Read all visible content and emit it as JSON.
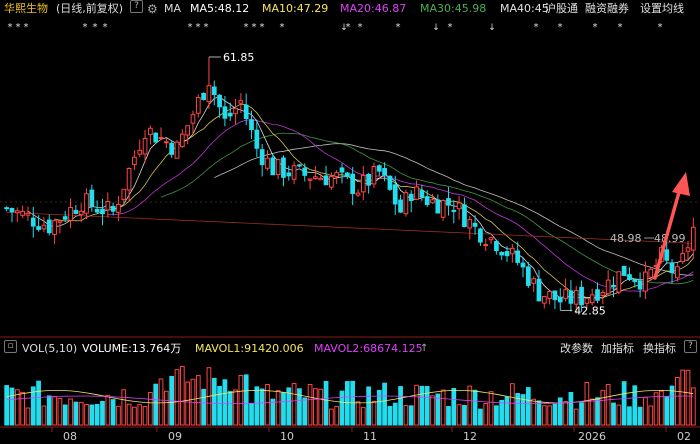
{
  "header": {
    "stock_name": "华熙生物",
    "mode": "(日线,前复权)",
    "help": "?",
    "ma_label": "MA",
    "ma5": "MA5:48.12",
    "ma10": "MA10:47.29",
    "ma20": "MA20:46.87",
    "ma30": "MA30:45.98",
    "ma40": "MA40:45",
    "link_hgt": "沪股通",
    "link_rzrq": "融资融券",
    "link_setma": "设置均线",
    "colors": {
      "ma5": "#ffffff",
      "ma10": "#f5e663",
      "ma20": "#e040fb",
      "ma30": "#4caf50",
      "ma40": "#e0e0e0"
    }
  },
  "volume_header": {
    "label": "VOL(5,10)",
    "volume": "VOLUME:13.764万",
    "mavol1": "MAVOL1:91420.006",
    "mavol2": "MAVOL2:68674.125",
    "btn_params": "改参数",
    "btn_add": "加指标",
    "btn_switch": "换指标",
    "help": "?"
  },
  "annotations": {
    "high_label": "61.85",
    "low_label": "42.85",
    "price_tag_left": "48.98",
    "price_tag_right": "48.99",
    "event_marks": "*",
    "event_down": "↓"
  },
  "chart_data": {
    "type": "candlestick",
    "x_axis_labels": [
      "08",
      "09",
      "10",
      "11",
      "12",
      "2026",
      "02"
    ],
    "price_high": 61.85,
    "price_low": 42.85,
    "last_ma": {
      "ma5": 48.12,
      "ma10": 47.29,
      "ma20": 46.87,
      "ma30": 45.98
    },
    "volume_last": "13.764万",
    "mavol1": 91420.006,
    "mavol2": 68674.125,
    "colors": {
      "up": "#ff4444",
      "down": "#22ddee",
      "arrow": "#ff5555"
    },
    "trend_keypoints": [
      {
        "month": "08",
        "close": 50.5
      },
      {
        "month": "09",
        "close": 60.2
      },
      {
        "month": "10",
        "close": 52.8
      },
      {
        "month": "11",
        "close": 51.0
      },
      {
        "month": "12",
        "close": 43.8
      },
      {
        "month": "2026",
        "close": 45.8
      },
      {
        "month": "02",
        "close": 48.98
      }
    ]
  }
}
